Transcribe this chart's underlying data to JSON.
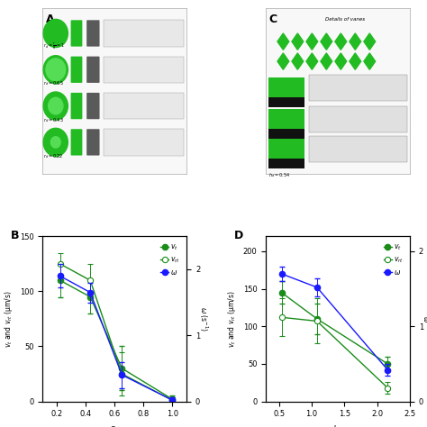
{
  "B": {
    "x": [
      0.22,
      0.43,
      0.65,
      1.0
    ],
    "vt": [
      110,
      95,
      30,
      2
    ],
    "vt_err": [
      15,
      15,
      20,
      3
    ],
    "vr": [
      125,
      110,
      25,
      1
    ],
    "vr_err": [
      10,
      15,
      20,
      3
    ],
    "omega": [
      1.9,
      1.65,
      0.4,
      0.02
    ],
    "omega_err": [
      0.18,
      0.15,
      0.2,
      0.04
    ],
    "xlabel": "r_d",
    "ylim_left": [
      0,
      150
    ],
    "ylim_right": [
      0,
      2.5
    ],
    "xlim": [
      0.1,
      1.1
    ],
    "xticks": [
      0.2,
      0.4,
      0.6,
      0.8,
      1.0
    ],
    "yticks_left": [
      0,
      50,
      100,
      150
    ],
    "yticks_right": [
      0,
      1,
      2
    ],
    "panel_label": "B"
  },
  "D": {
    "x": [
      0.54,
      1.08,
      2.16
    ],
    "vt": [
      145,
      110,
      50
    ],
    "vt_err": [
      15,
      20,
      10
    ],
    "vr": [
      112,
      107,
      18
    ],
    "vr_err": [
      25,
      30,
      8
    ],
    "omega": [
      1.7,
      1.52,
      0.42
    ],
    "omega_err": [
      0.1,
      0.12,
      0.08
    ],
    "xlabel": "h_d",
    "ylim_left": [
      0,
      220
    ],
    "ylim_right": [
      0,
      2.2
    ],
    "xlim": [
      0.3,
      2.5
    ],
    "xticks": [
      0.5,
      1.0,
      1.5,
      2.0,
      2.5
    ],
    "yticks_left": [
      0,
      50,
      100,
      150,
      200
    ],
    "yticks_right": [
      0,
      1,
      2
    ],
    "panel_label": "D"
  },
  "colors": {
    "vt_filled": "#1a8c1a",
    "vr_open": "#1a8c1a",
    "omega_filled": "#1a1aff",
    "line_omega": "#2a2a8a"
  },
  "top_bg": "#f0f0f0",
  "top_left_label": "A",
  "top_right_label": "C",
  "fig_bg": "#ffffff"
}
